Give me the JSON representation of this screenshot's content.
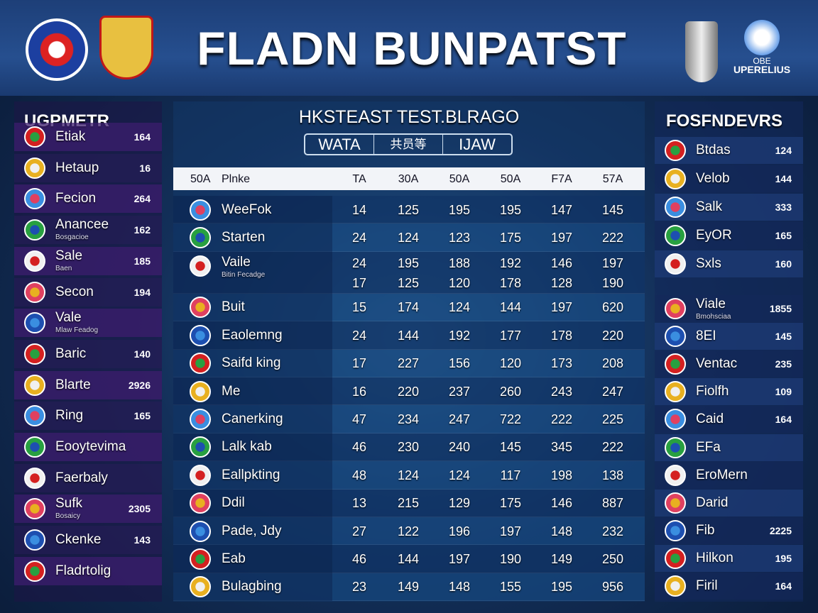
{
  "header": {
    "title": "FLADN BUNPATST",
    "badge_lines": [
      "OBE",
      "UPERELIUS"
    ]
  },
  "left_panel": {
    "title": "UGPMETR",
    "rows": [
      {
        "name": "Etiak",
        "value": 164
      },
      {
        "name": "Hetaup",
        "value": 16
      },
      {
        "name": "Fecion",
        "value": 264
      },
      {
        "name": "Anancee",
        "sub": "Bosgacioe",
        "value": 162
      },
      {
        "name": "Sale",
        "sub": "Baen",
        "value": 185
      },
      {
        "name": "Secon",
        "value": 194
      },
      {
        "name": "Vale",
        "sub": "Mlaw Feadog"
      },
      {
        "name": "Baric",
        "value": 140
      },
      {
        "name": "Blarte",
        "value": 2926
      },
      {
        "name": "Ring",
        "value": 165
      },
      {
        "name": "Eooytevima"
      },
      {
        "name": "Faerbaly"
      },
      {
        "name": "Sufk",
        "sub": "Bosaicy",
        "value": 2305
      },
      {
        "name": "Ckenke",
        "value": 143
      },
      {
        "name": "Fladrtolig"
      }
    ]
  },
  "center_panel": {
    "title": "HKSTEAST TEST.BLRAGO",
    "tabs": [
      "WATA",
      "共员等",
      "IJAW"
    ],
    "columns": [
      "50A",
      "Plnke",
      "TA",
      "30A",
      "50A",
      "50A",
      "F7A",
      "57A"
    ],
    "rows": [
      {
        "name": "WeeFok",
        "values": [
          14,
          125,
          195,
          195,
          147,
          145
        ]
      },
      {
        "name": "Starten",
        "values": [
          24,
          124,
          123,
          175,
          197,
          222
        ]
      },
      {
        "name": "Vaile",
        "sub": "Bitin Fecadge",
        "values": [
          24,
          195,
          188,
          192,
          146,
          197
        ],
        "values_2": [
          17,
          125,
          120,
          178,
          128,
          190
        ]
      },
      {
        "name": "Buit",
        "values": [
          15,
          174,
          124,
          144,
          197,
          620
        ]
      },
      {
        "name": "Eaolemng",
        "values": [
          24,
          144,
          192,
          177,
          178,
          220
        ]
      },
      {
        "name": "Saifd king",
        "values": [
          17,
          227,
          156,
          120,
          173,
          208
        ]
      },
      {
        "name": "Me",
        "values": [
          16,
          220,
          237,
          260,
          243,
          247
        ]
      },
      {
        "name": "Canerking",
        "values": [
          47,
          234,
          247,
          722,
          222,
          225
        ]
      },
      {
        "name": "Lalk kab",
        "values": [
          46,
          230,
          240,
          145,
          345,
          222
        ]
      },
      {
        "name": "Eallpkting",
        "values": [
          48,
          124,
          124,
          117,
          198,
          138
        ]
      },
      {
        "name": "Ddil",
        "values": [
          13,
          215,
          129,
          175,
          146,
          887
        ]
      },
      {
        "name": "Pade, Jdy",
        "values": [
          27,
          122,
          196,
          197,
          148,
          232
        ]
      },
      {
        "name": "Eab",
        "values": [
          46,
          144,
          197,
          190,
          149,
          250
        ]
      },
      {
        "name": "Bulagbing",
        "values": [
          23,
          149,
          148,
          155,
          195,
          956
        ]
      }
    ]
  },
  "right_panel": {
    "title": "FOSFNDEVRS",
    "rows": [
      {
        "name": "Btdas",
        "value": 124
      },
      {
        "name": "Velob",
        "value": 144
      },
      {
        "name": "Salk",
        "value": 333
      },
      {
        "name": "EyOR",
        "value": 165
      },
      {
        "name": "Sxls",
        "value": 160
      },
      {
        "name": "Viale",
        "sub": "Bmohsciaa",
        "value": 1855
      },
      {
        "name": "8EI",
        "value": 145
      },
      {
        "name": "Ventac",
        "value": 235
      },
      {
        "name": "Fiolfh",
        "value": 109
      },
      {
        "name": "Caid",
        "value": 164
      },
      {
        "name": "EFa"
      },
      {
        "name": "EroMern"
      },
      {
        "name": "Darid"
      },
      {
        "name": "Fib",
        "value": 2225
      },
      {
        "name": "Hilkon",
        "value": 195
      },
      {
        "name": "Firil",
        "value": 164
      }
    ]
  }
}
